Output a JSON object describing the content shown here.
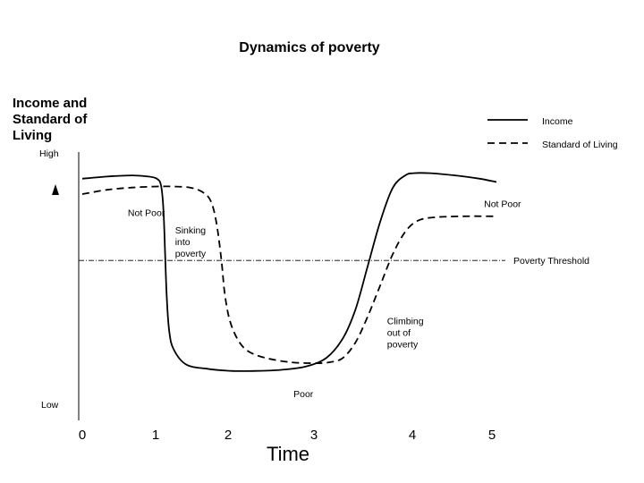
{
  "chart_data": {
    "type": "line",
    "title": "Dynamics of poverty",
    "ylabel_lines": [
      "Income and",
      "Standard of",
      "Living"
    ],
    "xlabel": "Time",
    "xticks": [
      "0",
      "1",
      "2",
      "3",
      "4",
      "5"
    ],
    "yticks": {
      "high": "High",
      "low": "Low"
    },
    "xlim": [
      0,
      5.3
    ],
    "ylim": [
      0,
      1
    ],
    "threshold": {
      "label": "Poverty Threshold",
      "y": 0.57
    },
    "series": [
      {
        "name": "Income",
        "style": "solid",
        "points": [
          [
            0,
            0.94
          ],
          [
            0.3,
            0.95
          ],
          [
            0.6,
            0.955
          ],
          [
            0.8,
            0.95
          ],
          [
            0.9,
            0.94
          ],
          [
            0.95,
            0.91
          ],
          [
            0.98,
            0.8
          ],
          [
            1.0,
            0.6
          ],
          [
            1.02,
            0.4
          ],
          [
            1.05,
            0.25
          ],
          [
            1.1,
            0.17
          ],
          [
            1.25,
            0.1
          ],
          [
            1.5,
            0.08
          ],
          [
            1.8,
            0.07
          ],
          [
            2.1,
            0.07
          ],
          [
            2.4,
            0.075
          ],
          [
            2.7,
            0.09
          ],
          [
            2.95,
            0.13
          ],
          [
            3.15,
            0.22
          ],
          [
            3.3,
            0.35
          ],
          [
            3.45,
            0.55
          ],
          [
            3.6,
            0.75
          ],
          [
            3.75,
            0.9
          ],
          [
            3.9,
            0.955
          ],
          [
            4.0,
            0.965
          ],
          [
            4.2,
            0.965
          ],
          [
            4.5,
            0.955
          ],
          [
            4.8,
            0.94
          ],
          [
            5.0,
            0.925
          ]
        ]
      },
      {
        "name": "Standard of Living",
        "style": "dashed",
        "points": [
          [
            0,
            0.87
          ],
          [
            0.3,
            0.89
          ],
          [
            0.6,
            0.9
          ],
          [
            0.9,
            0.905
          ],
          [
            1.1,
            0.905
          ],
          [
            1.3,
            0.9
          ],
          [
            1.45,
            0.88
          ],
          [
            1.55,
            0.84
          ],
          [
            1.62,
            0.74
          ],
          [
            1.68,
            0.57
          ],
          [
            1.72,
            0.42
          ],
          [
            1.78,
            0.3
          ],
          [
            1.88,
            0.21
          ],
          [
            2.0,
            0.16
          ],
          [
            2.2,
            0.13
          ],
          [
            2.5,
            0.11
          ],
          [
            2.8,
            0.105
          ],
          [
            3.0,
            0.11
          ],
          [
            3.15,
            0.13
          ],
          [
            3.3,
            0.2
          ],
          [
            3.45,
            0.32
          ],
          [
            3.6,
            0.46
          ],
          [
            3.75,
            0.6
          ],
          [
            3.9,
            0.7
          ],
          [
            4.05,
            0.75
          ],
          [
            4.25,
            0.765
          ],
          [
            4.6,
            0.77
          ],
          [
            5.0,
            0.77
          ]
        ]
      }
    ],
    "annotations": [
      {
        "key": "not_poor_left",
        "lines": [
          "Not Poor"
        ],
        "x": 0.55,
        "y": 0.82
      },
      {
        "key": "sinking",
        "lines": [
          "Sinking",
          "into",
          "poverty"
        ],
        "x": 1.12,
        "y": 0.74
      },
      {
        "key": "poor",
        "lines": [
          "Poor"
        ],
        "x": 2.55,
        "y": 0.0
      },
      {
        "key": "climbing",
        "lines": [
          "Climbing",
          "out of",
          "poverty"
        ],
        "x": 3.68,
        "y": 0.33
      },
      {
        "key": "not_poor_right",
        "lines": [
          "Not Poor"
        ],
        "x": 4.85,
        "y": 0.86
      }
    ],
    "grid": false,
    "legend_position": "top-right"
  }
}
